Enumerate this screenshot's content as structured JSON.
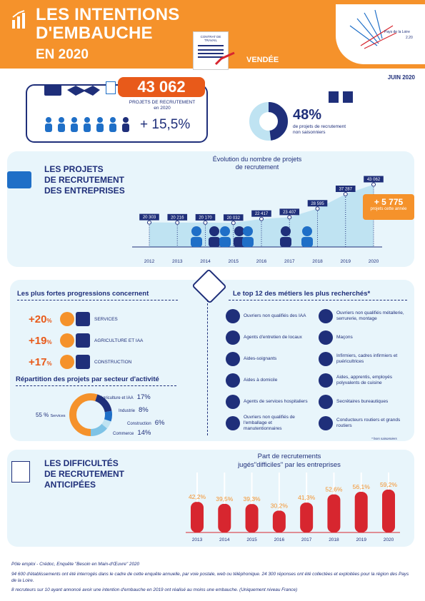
{
  "header": {
    "title_line1": "LES INTENTIONS",
    "title_line2": "D'EMBAUCHE",
    "year": "EN 2020",
    "region": "VENDÉE",
    "contract_label": "CONTRAT DE TRAVAIL",
    "date": "JUIN 2020",
    "colors": {
      "orange": "#f5922b",
      "navy": "#1f2f7a",
      "red": "#d7262f"
    }
  },
  "kpi": {
    "projects_value": "43 062",
    "projects_label": "PROJETS DE RECRUTEMENT",
    "projects_year": "en 2020",
    "growth": "+ 15,5%",
    "non_seasonal_pct": "48%",
    "non_seasonal_label": "de projets de recrutement",
    "non_seasonal_label2": "non saisonniers"
  },
  "projects_section": {
    "title_l1": "LES PROJETS",
    "title_l2": "DE RECRUTEMENT",
    "title_l3": "DES ENTREPRISES",
    "chart_title_l1": "Évolution du nombre de projets",
    "chart_title_l2": "de recrutement",
    "extra_value": "+ 5 775",
    "extra_label": "projets cette année"
  },
  "chart_data": [
    {
      "type": "line",
      "title": "Évolution du nombre de projets de recrutement",
      "x": [
        "2012",
        "2013",
        "2014",
        "2015",
        "2016",
        "2017",
        "2018",
        "2019",
        "2020"
      ],
      "values": [
        20303,
        20216,
        20170,
        20032,
        22417,
        23407,
        28595,
        37287,
        43062
      ],
      "labels": [
        "20 303",
        "20 216",
        "20 170",
        "20 032",
        "22 417",
        "23 407",
        "28 595",
        "37 287",
        "43 062"
      ]
    },
    {
      "type": "bar",
      "title": "Part de recrutements jugés \"difficiles\" par les entreprises",
      "categories": [
        "2013",
        "2014",
        "2015",
        "2016",
        "2017",
        "2018",
        "2019",
        "2020"
      ],
      "values": [
        42.2,
        39.5,
        39.3,
        30.2,
        41.3,
        52.6,
        56.1,
        59.2
      ],
      "labels": [
        "42,2",
        "39,5",
        "39,3",
        "30,2",
        "41,3",
        "52,6",
        "56,1",
        "59,2"
      ],
      "unit": "%"
    },
    {
      "type": "pie",
      "title": "Répartition des projets par secteur d'activité",
      "categories": [
        "Services",
        "Agriculture et IAA",
        "Industrie",
        "Construction",
        "Commerce"
      ],
      "values": [
        55,
        17,
        8,
        6,
        14
      ]
    }
  ],
  "progressions": {
    "title": "Les plus fortes progressions concernent",
    "items": [
      {
        "pct": "+20",
        "unit": "%",
        "label": "SERVICES"
      },
      {
        "pct": "+19",
        "unit": "%",
        "label": "AGRICULTURE ET IAA"
      },
      {
        "pct": "+17",
        "unit": "%",
        "label": "CONSTRUCTION"
      }
    ]
  },
  "repartition": {
    "title": "Répartition des projets par secteur d'activité",
    "services": "55 %",
    "services_label": "Services",
    "items": [
      {
        "label": "Agriculture et IAA",
        "pct": "17%"
      },
      {
        "label": "Industrie",
        "pct": "8%"
      },
      {
        "label": "Construction",
        "pct": "6%"
      },
      {
        "label": "Commerce",
        "pct": "14%"
      }
    ]
  },
  "metiers": {
    "title": "Le top 12 des métiers les plus recherchés*",
    "left": [
      "Ouvriers non qualifiés des IAA",
      "Agents d'entretien de locaux",
      "Aides-soignants",
      "Aides à domicile",
      "Agents de services hospitaliers",
      "Ouvriers non qualifiés de l'emballage et manutentionnaires"
    ],
    "right": [
      "Ouvriers non qualifiés métallerie, serrurerie, montage",
      "Maçons",
      "Infirmiers, cadres infirmiers et puéricultrices",
      "Aides, apprentis, employés polyvalents de cuisine",
      "Secrétaires bureautiques",
      "Conducteurs routiers et grands routiers"
    ],
    "note": "* hors saisonniers"
  },
  "difficulties": {
    "title_l1": "LES DIFFICULTÉS",
    "title_l2": "DE RECRUTEMENT",
    "title_l3": "ANTICIPÉES",
    "chart_title_l1": "Part de recrutements",
    "chart_title_l2": "jugés\"difficiles\" par les entreprises"
  },
  "footer": {
    "line1": "Pôle emploi - Crédoc, Enquête \"Besoin en Main-d'Œuvre\" 2020",
    "line2": "94 600 d'établissements ont été interrogés dans le cadre de cette enquête annuelle, par voie postale, web ou téléphonique. 24 300 réponses ont été collectées et exploitées pour la région des Pays de la Loire.",
    "line3": "8 recruteurs sur 10 ayant annoncé avoir une intention d'embauche en 2019 ont réalisé au moins une embauche. (Uniquement niveau France)"
  }
}
